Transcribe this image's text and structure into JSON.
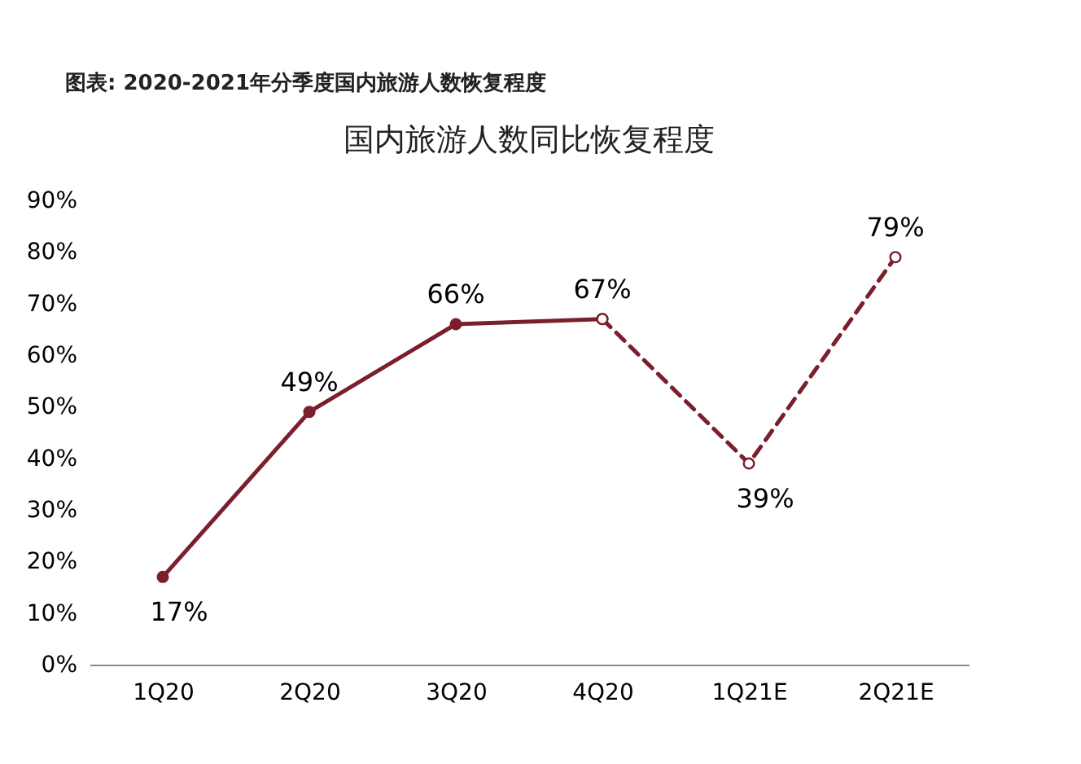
{
  "chart_data": {
    "type": "line",
    "title": "图表: 2020-2021年分季度国内旅游人数恢复程度",
    "subtitle": "国内旅游人数同比恢复程度",
    "categories": [
      "1Q20",
      "2Q20",
      "3Q20",
      "4Q20",
      "1Q21E",
      "2Q21E"
    ],
    "series": [
      {
        "color": "#7a1f2b",
        "line_style": "solid",
        "values": [
          17,
          49,
          66,
          67,
          null,
          null
        ],
        "value_labels": [
          "17%",
          "49%",
          "66%",
          "67%",
          null,
          null
        ]
      },
      {
        "color": "#7a1f2b",
        "line_style": "dashed",
        "values": [
          null,
          null,
          null,
          67,
          39,
          79
        ],
        "value_labels": [
          null,
          null,
          null,
          null,
          "39%",
          "79%"
        ]
      }
    ],
    "ylim": [
      0,
      90
    ],
    "yticks": [
      {
        "value": 0,
        "label": "0%"
      },
      {
        "value": 10,
        "label": "10%"
      },
      {
        "value": 20,
        "label": "20%"
      },
      {
        "value": 30,
        "label": "30%"
      },
      {
        "value": 40,
        "label": "40%"
      },
      {
        "value": 50,
        "label": "50%"
      },
      {
        "value": 60,
        "label": "60%"
      },
      {
        "value": 70,
        "label": "70%"
      },
      {
        "value": 80,
        "label": "80%"
      },
      {
        "value": 90,
        "label": "90%"
      }
    ],
    "marker": "circle"
  }
}
